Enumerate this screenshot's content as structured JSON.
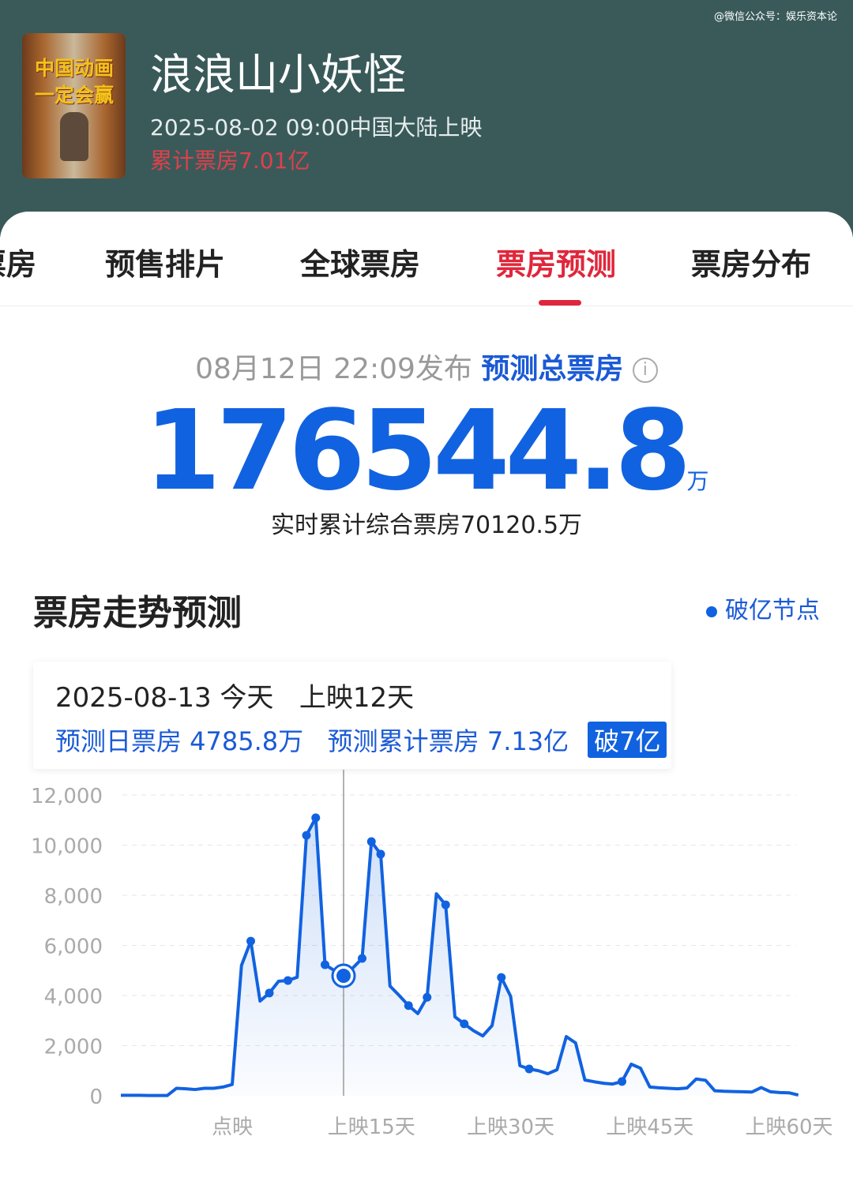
{
  "watermark": "@微信公众号：娱乐资本论",
  "movie": {
    "poster_text": "中国动画一定会赢",
    "title": "浪浪山小妖怪",
    "release": "2025-08-02 09:00中国大陆上映",
    "gross": "累计票房7.01亿"
  },
  "tabs": [
    {
      "label": "票房"
    },
    {
      "label": "预售排片"
    },
    {
      "label": "全球票房"
    },
    {
      "label": "票房预测",
      "active": true
    },
    {
      "label": "票房分布"
    }
  ],
  "forecast": {
    "published": "08月12日 22:09发布",
    "label": "预测总票房",
    "info_icon": "info-icon",
    "total": "176544.8",
    "unit": "万",
    "realtime": "实时累计综合票房70120.5万"
  },
  "trend": {
    "title": "票房走势预测",
    "legend": "破亿节点"
  },
  "tooltip": {
    "date": "2025-08-13",
    "today": "今天",
    "day": "上映12天",
    "daily": "预测日票房 4785.8万",
    "cumulative": "预测累计票房 7.13亿",
    "badge": "破7亿"
  },
  "colors": {
    "line": "#1162e0",
    "accent": "#e0263b",
    "header": "#3a5a5a"
  },
  "chart_data": {
    "type": "area",
    "yticks": [
      "12,000",
      "10,000",
      "8,000",
      "6,000",
      "4,000",
      "2,000",
      "0"
    ],
    "ylim": [
      0,
      12000
    ],
    "xticks": [
      {
        "day": 0,
        "label": "点映"
      },
      {
        "day": 15,
        "label": "上映15天"
      },
      {
        "day": 30,
        "label": "上映30天"
      },
      {
        "day": 45,
        "label": "上映45天"
      },
      {
        "day": 60,
        "label": "上映60天"
      }
    ],
    "days": [
      -12,
      -11,
      -10,
      -9,
      -8,
      -7,
      -6,
      -5,
      -4,
      -3,
      -2,
      -1,
      0,
      1,
      2,
      3,
      4,
      5,
      6,
      7,
      8,
      9,
      10,
      11,
      12,
      13,
      14,
      15,
      16,
      17,
      18,
      19,
      20,
      21,
      22,
      23,
      24,
      25,
      26,
      27,
      28,
      29,
      30,
      31,
      32,
      33,
      34,
      35,
      36,
      37,
      38,
      39,
      40,
      41,
      42,
      43,
      44,
      45,
      46,
      47,
      48,
      49,
      50,
      51,
      52,
      53,
      54,
      55,
      56,
      57,
      58,
      59,
      60,
      61
    ],
    "values": [
      20,
      20,
      20,
      10,
      10,
      10,
      300,
      280,
      250,
      300,
      300,
      350,
      450,
      5200,
      6170,
      3780,
      4100,
      4570,
      4600,
      4730,
      10390,
      11090,
      5230,
      5000,
      4786,
      5100,
      5480,
      10140,
      9640,
      4380,
      4000,
      3600,
      3280,
      3930,
      8060,
      7620,
      3150,
      2870,
      2600,
      2390,
      2800,
      4720,
      3970,
      1200,
      1070,
      1000,
      880,
      1040,
      2360,
      2110,
      630,
      560,
      500,
      470,
      570,
      1260,
      1100,
      350,
      320,
      300,
      280,
      310,
      670,
      620,
      200,
      180,
      170,
      160,
      150,
      330,
      160,
      130,
      120,
      30
    ],
    "markers": [
      2,
      4,
      6,
      8,
      9,
      10,
      14,
      15,
      16,
      19,
      21,
      23,
      25,
      29,
      32,
      42
    ],
    "selected_day": 12,
    "grid": true
  }
}
